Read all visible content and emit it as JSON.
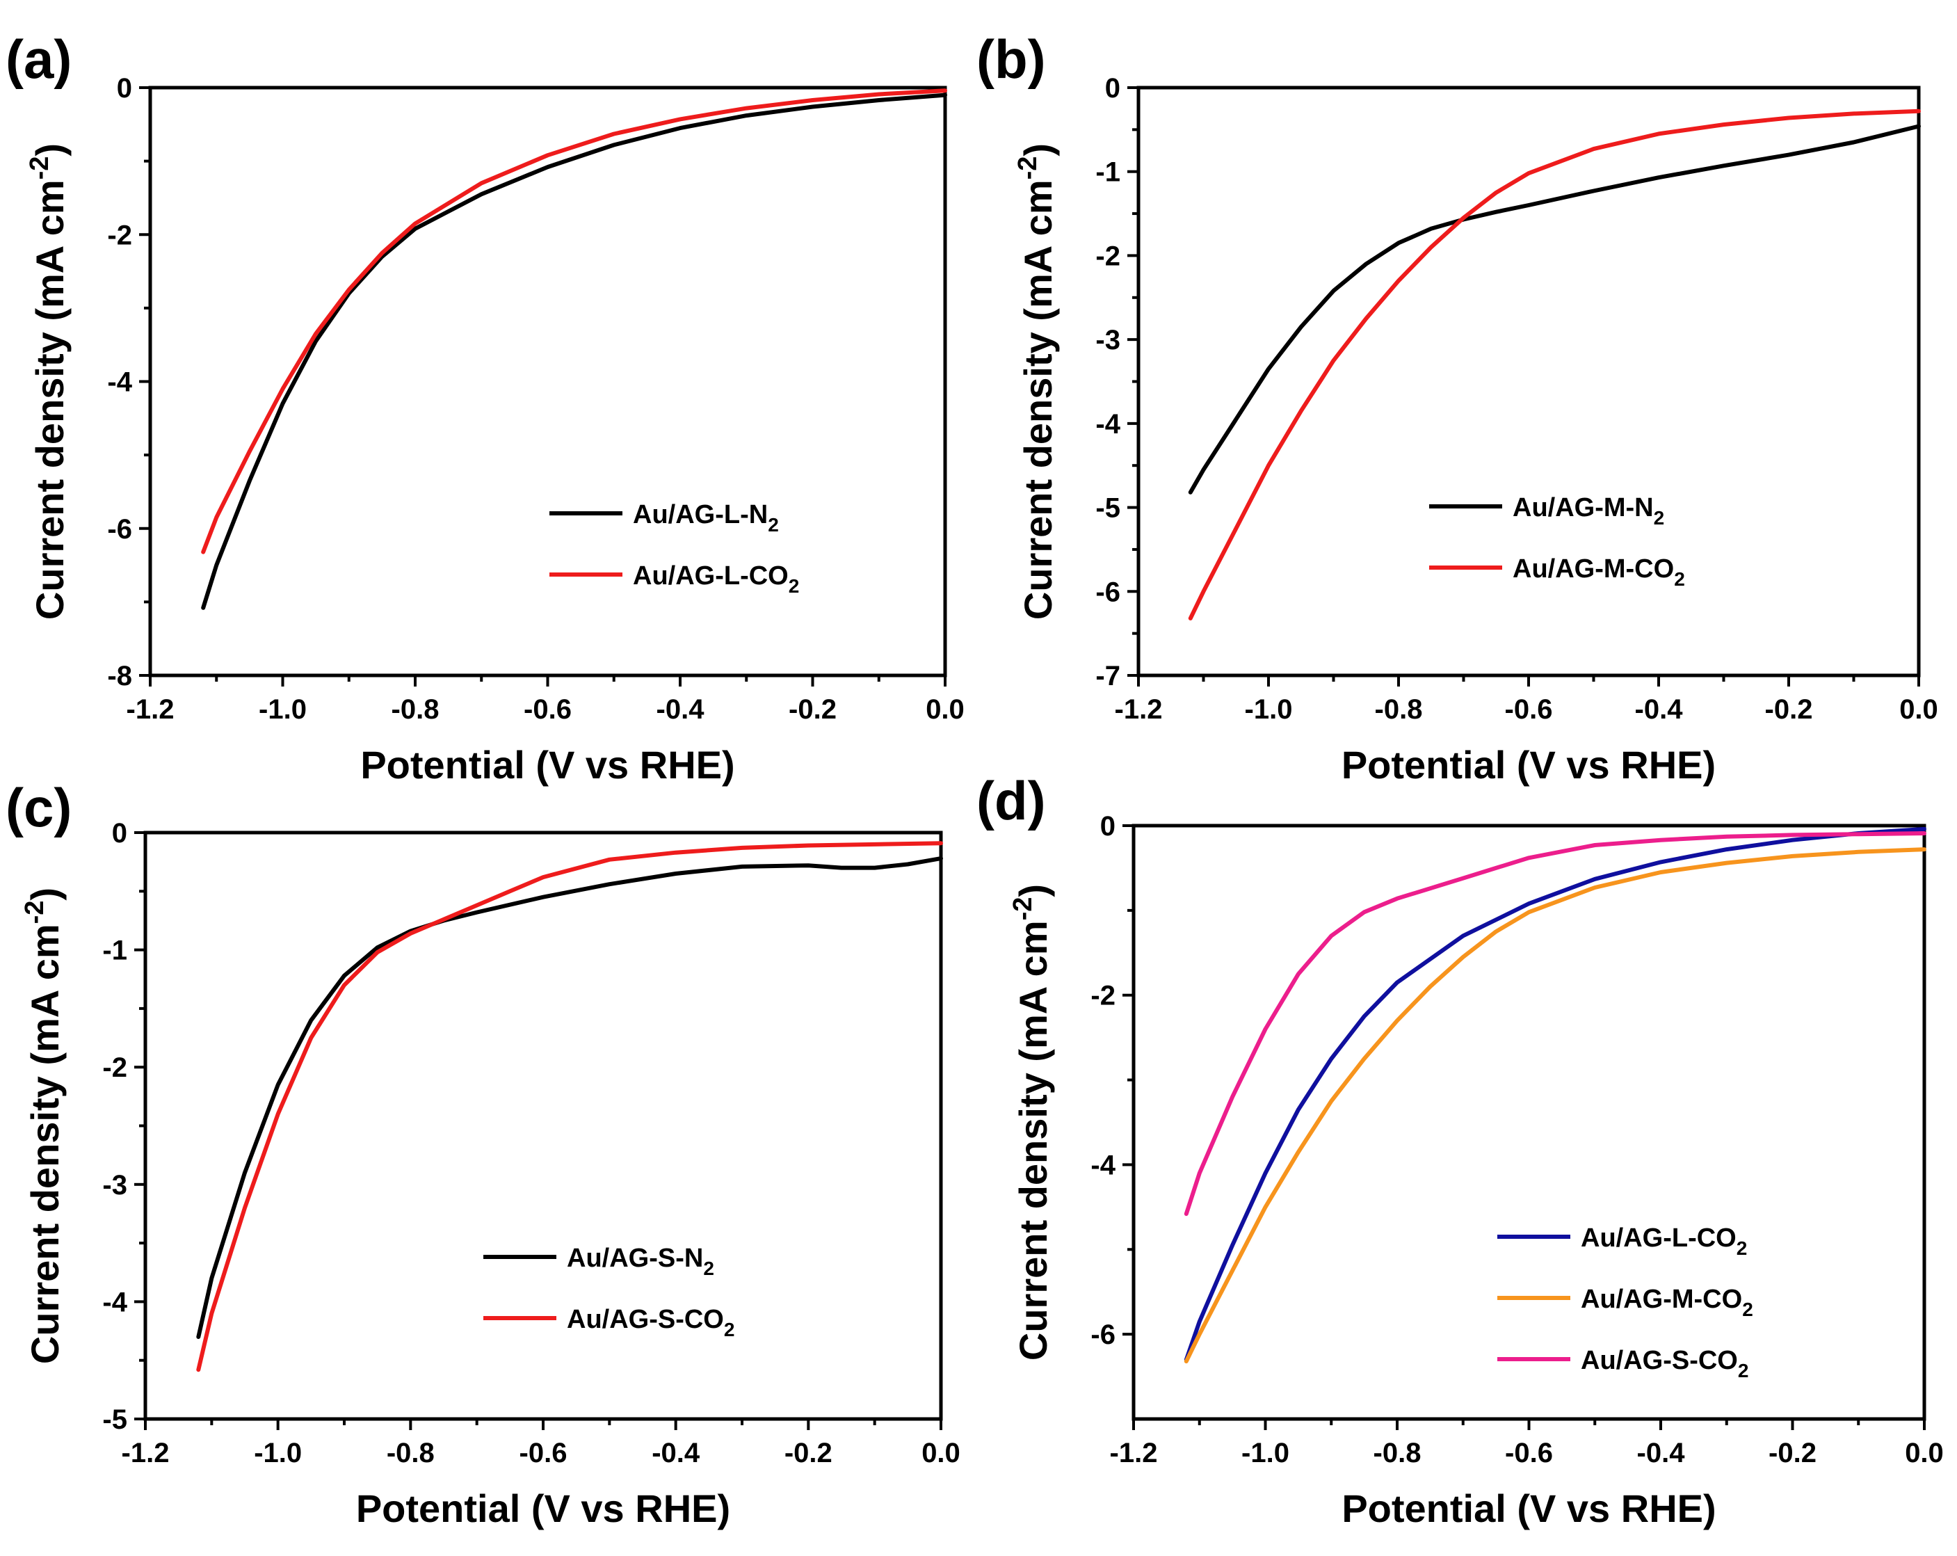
{
  "colors": {
    "black": "#000000",
    "red": "#ee1c1c",
    "blue": "#0f0f9e",
    "orange": "#f7941d",
    "pink": "#ec1e8c"
  },
  "chart_data": [
    {
      "panel": "(a)",
      "type": "line",
      "xlabel": "Potential (V vs RHE)",
      "ylabel": "Current density (mA cm",
      "ylabel_sup": "-2",
      "ylabel_end": ")",
      "xlim": [
        -1.2,
        0.0
      ],
      "ylim": [
        -8,
        0
      ],
      "xticks": [
        -1.2,
        -1.0,
        -0.8,
        -0.6,
        -0.4,
        -0.2,
        0.0
      ],
      "xtick_labels": [
        "-1.2",
        "-1.0",
        "-0.8",
        "-0.6",
        "-0.4",
        "-0.2",
        "0.0"
      ],
      "yticks": [
        -8,
        -6,
        -4,
        -2,
        0
      ],
      "ytick_labels": [
        "-8",
        "-6",
        "-4",
        "-2",
        "0"
      ],
      "legend_position": "lower-right",
      "series": [
        {
          "name": "Au/AG-L-N",
          "sub": "2",
          "color": "#000000",
          "x": [
            -1.12,
            -1.1,
            -1.05,
            -1.0,
            -0.95,
            -0.9,
            -0.85,
            -0.8,
            -0.7,
            -0.6,
            -0.5,
            -0.4,
            -0.3,
            -0.2,
            -0.1,
            0.0
          ],
          "y": [
            -7.08,
            -6.5,
            -5.35,
            -4.3,
            -3.45,
            -2.8,
            -2.3,
            -1.92,
            -1.45,
            -1.08,
            -0.78,
            -0.55,
            -0.38,
            -0.26,
            -0.17,
            -0.1
          ]
        },
        {
          "name": "Au/AG-L-CO",
          "sub": "2",
          "color": "#ee1c1c",
          "x": [
            -1.12,
            -1.1,
            -1.05,
            -1.0,
            -0.95,
            -0.9,
            -0.85,
            -0.8,
            -0.7,
            -0.6,
            -0.5,
            -0.4,
            -0.3,
            -0.2,
            -0.1,
            0.0
          ],
          "y": [
            -6.32,
            -5.85,
            -4.95,
            -4.1,
            -3.35,
            -2.75,
            -2.25,
            -1.85,
            -1.3,
            -0.92,
            -0.63,
            -0.43,
            -0.28,
            -0.17,
            -0.09,
            -0.04
          ]
        }
      ]
    },
    {
      "panel": "(b)",
      "type": "line",
      "xlabel": "Potential (V vs RHE)",
      "ylabel": "Current density (mA cm",
      "ylabel_sup": "-2",
      "ylabel_end": ")",
      "xlim": [
        -1.2,
        0.0
      ],
      "ylim": [
        -7,
        0
      ],
      "xticks": [
        -1.2,
        -1.0,
        -0.8,
        -0.6,
        -0.4,
        -0.2,
        0.0
      ],
      "xtick_labels": [
        "-1.2",
        "-1.0",
        "-0.8",
        "-0.6",
        "-0.4",
        "-0.2",
        "0.0"
      ],
      "yticks": [
        -7,
        -6,
        -5,
        -4,
        -3,
        -2,
        -1,
        0
      ],
      "ytick_labels": [
        "-7",
        "-6",
        "-5",
        "-4",
        "-3",
        "-2",
        "-1",
        "0"
      ],
      "legend_position": "lower-right",
      "series": [
        {
          "name": "Au/AG-M-N",
          "sub": "2",
          "color": "#000000",
          "x": [
            -1.12,
            -1.1,
            -1.05,
            -1.0,
            -0.95,
            -0.9,
            -0.85,
            -0.8,
            -0.75,
            -0.7,
            -0.65,
            -0.6,
            -0.5,
            -0.4,
            -0.3,
            -0.2,
            -0.1,
            0.0
          ],
          "y": [
            -4.82,
            -4.55,
            -3.95,
            -3.35,
            -2.85,
            -2.42,
            -2.1,
            -1.85,
            -1.68,
            -1.57,
            -1.48,
            -1.4,
            -1.23,
            -1.07,
            -0.93,
            -0.8,
            -0.65,
            -0.46
          ]
        },
        {
          "name": "Au/AG-M-CO",
          "sub": "2",
          "color": "#ee1c1c",
          "x": [
            -1.12,
            -1.1,
            -1.05,
            -1.0,
            -0.95,
            -0.9,
            -0.85,
            -0.8,
            -0.75,
            -0.7,
            -0.65,
            -0.6,
            -0.5,
            -0.4,
            -0.3,
            -0.2,
            -0.1,
            0.0
          ],
          "y": [
            -6.32,
            -6.0,
            -5.25,
            -4.5,
            -3.85,
            -3.25,
            -2.75,
            -2.3,
            -1.9,
            -1.55,
            -1.25,
            -1.02,
            -0.73,
            -0.55,
            -0.44,
            -0.36,
            -0.31,
            -0.28
          ]
        }
      ]
    },
    {
      "panel": "(c)",
      "type": "line",
      "xlabel": "Potential (V vs RHE)",
      "ylabel": "Current density (mA cm",
      "ylabel_sup": "-2",
      "ylabel_end": ")",
      "xlim": [
        -1.2,
        0.0
      ],
      "ylim": [
        -5,
        0
      ],
      "xticks": [
        -1.2,
        -1.0,
        -0.8,
        -0.6,
        -0.4,
        -0.2,
        0.0
      ],
      "xtick_labels": [
        "-1.2",
        "-1.0",
        "-0.8",
        "-0.6",
        "-0.4",
        "-0.2",
        "0.0"
      ],
      "yticks": [
        -5,
        -4,
        -3,
        -2,
        -1,
        0
      ],
      "ytick_labels": [
        "-5",
        "-4",
        "-3",
        "-2",
        "-1",
        "0"
      ],
      "legend_position": "lower-right",
      "series": [
        {
          "name": "Au/AG-S-N",
          "sub": "2",
          "color": "#000000",
          "x": [
            -1.12,
            -1.1,
            -1.05,
            -1.0,
            -0.95,
            -0.9,
            -0.85,
            -0.8,
            -0.75,
            -0.7,
            -0.6,
            -0.5,
            -0.4,
            -0.3,
            -0.2,
            -0.15,
            -0.1,
            -0.05,
            0.0
          ],
          "y": [
            -4.3,
            -3.8,
            -2.9,
            -2.15,
            -1.6,
            -1.22,
            -0.98,
            -0.84,
            -0.75,
            -0.68,
            -0.55,
            -0.44,
            -0.35,
            -0.29,
            -0.28,
            -0.3,
            -0.3,
            -0.27,
            -0.22
          ]
        },
        {
          "name": "Au/AG-S-CO",
          "sub": "2",
          "color": "#ee1c1c",
          "x": [
            -1.12,
            -1.1,
            -1.05,
            -1.0,
            -0.95,
            -0.9,
            -0.85,
            -0.8,
            -0.75,
            -0.7,
            -0.65,
            -0.6,
            -0.5,
            -0.4,
            -0.3,
            -0.2,
            -0.1,
            0.0
          ],
          "y": [
            -4.58,
            -4.1,
            -3.2,
            -2.4,
            -1.75,
            -1.3,
            -1.02,
            -0.86,
            -0.74,
            -0.62,
            -0.5,
            -0.38,
            -0.23,
            -0.17,
            -0.13,
            -0.11,
            -0.1,
            -0.09
          ]
        }
      ]
    },
    {
      "panel": "(d)",
      "type": "line",
      "xlabel": "Potential (V vs RHE)",
      "ylabel": "Current density (mA cm",
      "ylabel_sup": "-2",
      "ylabel_end": ")",
      "xlim": [
        -1.2,
        0.0
      ],
      "ylim": [
        -7,
        0
      ],
      "xticks": [
        -1.2,
        -1.0,
        -0.8,
        -0.6,
        -0.4,
        -0.2,
        0.0
      ],
      "xtick_labels": [
        "-1.2",
        "-1.0",
        "-0.8",
        "-0.6",
        "-0.4",
        "-0.2",
        "0.0"
      ],
      "yticks": [
        -6,
        -4,
        -2,
        0
      ],
      "ytick_labels": [
        "-6",
        "-4",
        "-2",
        "0"
      ],
      "legend_position": "lower-right",
      "series": [
        {
          "name": "Au/AG-L-CO",
          "sub": "2",
          "color": "#0f0f9e",
          "x": [
            -1.12,
            -1.1,
            -1.05,
            -1.0,
            -0.95,
            -0.9,
            -0.85,
            -0.8,
            -0.7,
            -0.6,
            -0.5,
            -0.4,
            -0.3,
            -0.2,
            -0.1,
            0.0
          ],
          "y": [
            -6.3,
            -5.85,
            -4.95,
            -4.1,
            -3.35,
            -2.75,
            -2.25,
            -1.85,
            -1.3,
            -0.92,
            -0.63,
            -0.43,
            -0.28,
            -0.17,
            -0.09,
            -0.04
          ]
        },
        {
          "name": "Au/AG-M-CO",
          "sub": "2",
          "color": "#f7941d",
          "x": [
            -1.12,
            -1.1,
            -1.05,
            -1.0,
            -0.95,
            -0.9,
            -0.85,
            -0.8,
            -0.75,
            -0.7,
            -0.65,
            -0.6,
            -0.5,
            -0.4,
            -0.3,
            -0.2,
            -0.1,
            0.0
          ],
          "y": [
            -6.32,
            -6.0,
            -5.25,
            -4.5,
            -3.85,
            -3.25,
            -2.75,
            -2.3,
            -1.9,
            -1.55,
            -1.25,
            -1.02,
            -0.73,
            -0.55,
            -0.44,
            -0.36,
            -0.31,
            -0.28
          ]
        },
        {
          "name": "Au/AG-S-CO",
          "sub": "2",
          "color": "#ec1e8c",
          "x": [
            -1.12,
            -1.1,
            -1.05,
            -1.0,
            -0.95,
            -0.9,
            -0.85,
            -0.8,
            -0.75,
            -0.7,
            -0.65,
            -0.6,
            -0.5,
            -0.4,
            -0.3,
            -0.2,
            -0.1,
            0.0
          ],
          "y": [
            -4.58,
            -4.1,
            -3.2,
            -2.4,
            -1.75,
            -1.3,
            -1.02,
            -0.86,
            -0.74,
            -0.62,
            -0.5,
            -0.38,
            -0.23,
            -0.17,
            -0.13,
            -0.11,
            -0.1,
            -0.09
          ]
        }
      ]
    }
  ]
}
